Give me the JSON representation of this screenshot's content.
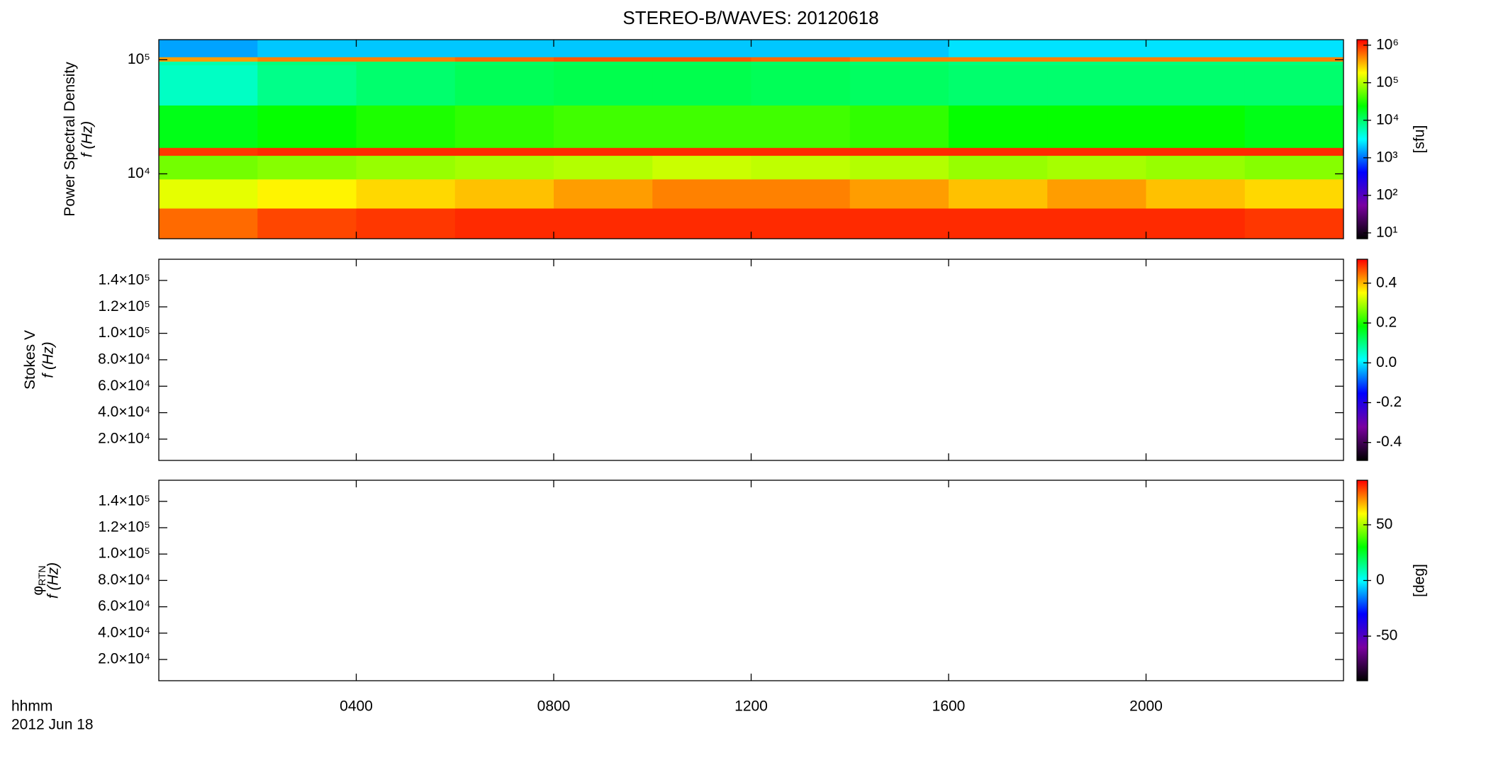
{
  "chart_data": [
    {
      "type": "heatmap",
      "title": "STEREO-B/WAVES: 20120618",
      "ylabel": "Power Spectral Density",
      "ylabel2": "f (Hz)",
      "yscale": "log",
      "ylim": [
        2700,
        150000
      ],
      "yticks": [
        {
          "value": 10000,
          "label": "10⁴"
        },
        {
          "value": 100000,
          "label": "10⁵"
        }
      ],
      "xlim": [
        0,
        24
      ],
      "x_bins": [
        0,
        2,
        4,
        6,
        8,
        10,
        12,
        14,
        16,
        18,
        20,
        22,
        24
      ],
      "freq_bins": [
        2700,
        5000,
        9000,
        14500,
        17000,
        40000,
        90000,
        97000,
        106000,
        150000
      ],
      "z": [
        [
          600000,
          800000,
          900000,
          1000000,
          1000000,
          1000000,
          1000000,
          1000000,
          1000000,
          1000000,
          1000000,
          900000
        ],
        [
          150000,
          200000,
          250000,
          300000,
          400000,
          500000,
          500000,
          400000,
          300000,
          400000,
          300000,
          250000
        ],
        [
          60000,
          70000,
          80000,
          90000,
          100000,
          120000,
          110000,
          100000,
          80000,
          90000,
          80000,
          70000
        ],
        [
          900000,
          1000000,
          1000000,
          1000000,
          1000000,
          1000000,
          1000000,
          1000000,
          1000000,
          1000000,
          1000000,
          1000000
        ],
        [
          20000,
          25000,
          30000,
          35000,
          40000,
          40000,
          40000,
          35000,
          25000,
          25000,
          25000,
          20000
        ],
        [
          5000,
          8000,
          10000,
          12000,
          13000,
          13000,
          12000,
          11000,
          10000,
          10000,
          10000,
          10000
        ],
        [
          6000,
          9000,
          10000,
          11000,
          12000,
          12000,
          11000,
          10000,
          9000,
          9000,
          9000,
          9000
        ],
        [
          400000,
          500000,
          500000,
          600000,
          700000,
          700000,
          600000,
          500000,
          500000,
          500000,
          500000,
          500000
        ],
        [
          1500,
          2000,
          2000,
          2000,
          2000,
          2000,
          2000,
          2000,
          2500,
          2500,
          2500,
          2500
        ]
      ],
      "colormap": [
        "#000000",
        "#7a00a0",
        "#0000ff",
        "#00ffff",
        "#00ff00",
        "#ffff00",
        "#ff0000"
      ],
      "cscale": "log",
      "clim": [
        7,
        1400000
      ],
      "cticks": [
        {
          "value": 10,
          "label": "10¹"
        },
        {
          "value": 100,
          "label": "10²"
        },
        {
          "value": 1000,
          "label": "10³"
        },
        {
          "value": 10000,
          "label": "10⁴"
        },
        {
          "value": 100000,
          "label": "10⁵"
        },
        {
          "value": 1000000,
          "label": "10⁶"
        }
      ],
      "clabel": "[sfu]"
    },
    {
      "type": "heatmap",
      "ylabel": "Stokes V",
      "ylabel2": "f (Hz)",
      "yscale": "linear",
      "ylim": [
        3900,
        156000
      ],
      "yticks": [
        {
          "value": 20000,
          "label": "2.0×10⁴"
        },
        {
          "value": 40000,
          "label": "4.0×10⁴"
        },
        {
          "value": 60000,
          "label": "6.0×10⁴"
        },
        {
          "value": 80000,
          "label": "8.0×10⁴"
        },
        {
          "value": 100000,
          "label": "1.0×10⁵"
        },
        {
          "value": 120000,
          "label": "1.2×10⁵"
        },
        {
          "value": 140000,
          "label": "1.4×10⁵"
        }
      ],
      "xlim": [
        0,
        24
      ],
      "colormap": [
        "#000000",
        "#7a00a0",
        "#0000ff",
        "#00ffff",
        "#00ff00",
        "#ffff00",
        "#ff0000"
      ],
      "cscale": "linear",
      "clim": [
        -0.49,
        0.52
      ],
      "cticks": [
        -0.4,
        -0.2,
        {
          "value": 0,
          "label": "0.0"
        },
        0.2,
        0.4
      ]
    },
    {
      "type": "heatmap",
      "ylabel": "φ",
      "ylabel_sub": "RTN",
      "ylabel2": "f (Hz)",
      "yscale": "linear",
      "ylim": [
        3900,
        156000
      ],
      "yticks": [
        {
          "value": 20000,
          "label": "2.0×10⁴"
        },
        {
          "value": 40000,
          "label": "4.0×10⁴"
        },
        {
          "value": 60000,
          "label": "6.0×10⁴"
        },
        {
          "value": 80000,
          "label": "8.0×10⁴"
        },
        {
          "value": 100000,
          "label": "1.0×10⁵"
        },
        {
          "value": 120000,
          "label": "1.2×10⁵"
        },
        {
          "value": 140000,
          "label": "1.4×10⁵"
        }
      ],
      "xlim": [
        0,
        24
      ],
      "xlabel": "hhmm",
      "date": "2012 Jun 18",
      "xticks": [
        {
          "value": 4,
          "label": "0400"
        },
        {
          "value": 8,
          "label": "0800"
        },
        {
          "value": 12,
          "label": "1200"
        },
        {
          "value": 16,
          "label": "1600"
        },
        {
          "value": 20,
          "label": "2000"
        }
      ],
      "colormap": [
        "#000000",
        "#7a00a0",
        "#0000ff",
        "#00ffff",
        "#00ff00",
        "#ffff00",
        "#ff0000"
      ],
      "cscale": "linear",
      "clim": [
        -90,
        90
      ],
      "cticks": [
        -50,
        0,
        50
      ],
      "clabel": "[deg]"
    }
  ]
}
